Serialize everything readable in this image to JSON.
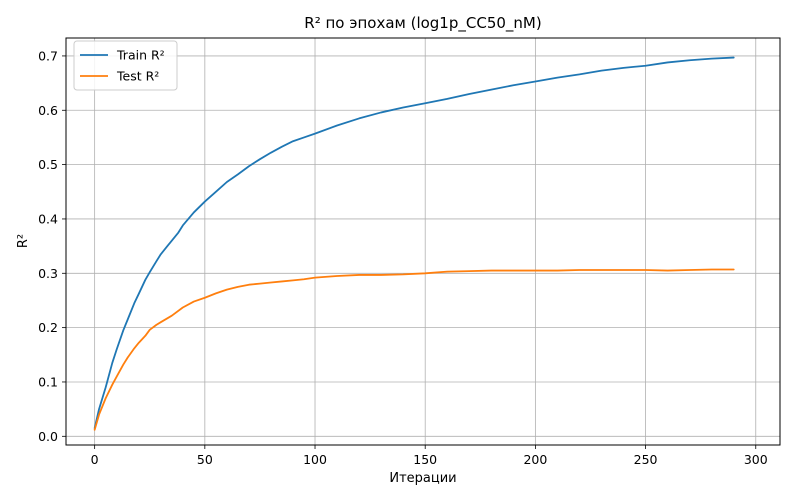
{
  "chart_data": {
    "type": "line",
    "title": "R² по эпохам (log1p_CC50_nM)",
    "xlabel": "Итерации",
    "ylabel": "R²",
    "xlim": [
      -13,
      311
    ],
    "ylim": [
      -0.016,
      0.733
    ],
    "xticks": [
      0,
      50,
      100,
      150,
      200,
      250,
      300
    ],
    "yticks": [
      0.0,
      0.1,
      0.2,
      0.3,
      0.4,
      0.5,
      0.6,
      0.7
    ],
    "xtick_labels": [
      "0",
      "50",
      "100",
      "150",
      "200",
      "250",
      "300"
    ],
    "ytick_labels": [
      "0.0",
      "0.1",
      "0.2",
      "0.3",
      "0.4",
      "0.5",
      "0.6",
      "0.7"
    ],
    "grid": true,
    "legend_position": "upper-left",
    "series": [
      {
        "name": "Train R²",
        "color": "#1f77b4",
        "x": [
          0,
          2,
          5,
          8,
          10,
          13,
          15,
          18,
          20,
          23,
          25,
          28,
          30,
          33,
          35,
          38,
          40,
          45,
          50,
          55,
          60,
          65,
          70,
          75,
          80,
          85,
          90,
          95,
          100,
          110,
          120,
          130,
          140,
          150,
          160,
          170,
          180,
          190,
          200,
          210,
          220,
          230,
          240,
          250,
          260,
          270,
          280,
          290
        ],
        "y": [
          0.015,
          0.05,
          0.09,
          0.135,
          0.16,
          0.195,
          0.215,
          0.245,
          0.262,
          0.288,
          0.302,
          0.322,
          0.335,
          0.35,
          0.36,
          0.375,
          0.388,
          0.412,
          0.432,
          0.45,
          0.468,
          0.482,
          0.497,
          0.51,
          0.522,
          0.533,
          0.543,
          0.55,
          0.557,
          0.572,
          0.585,
          0.596,
          0.605,
          0.613,
          0.621,
          0.63,
          0.638,
          0.646,
          0.653,
          0.66,
          0.666,
          0.673,
          0.678,
          0.682,
          0.688,
          0.692,
          0.695,
          0.697
        ]
      },
      {
        "name": "Test R²",
        "color": "#ff7f0e",
        "x": [
          0,
          2,
          5,
          8,
          10,
          13,
          15,
          18,
          20,
          23,
          25,
          28,
          30,
          35,
          40,
          45,
          50,
          55,
          60,
          65,
          70,
          75,
          80,
          85,
          90,
          95,
          100,
          110,
          120,
          130,
          140,
          150,
          160,
          170,
          180,
          190,
          200,
          210,
          220,
          230,
          240,
          250,
          260,
          270,
          280,
          290
        ],
        "y": [
          0.012,
          0.04,
          0.07,
          0.095,
          0.11,
          0.132,
          0.145,
          0.162,
          0.172,
          0.185,
          0.196,
          0.205,
          0.21,
          0.222,
          0.237,
          0.248,
          0.255,
          0.263,
          0.27,
          0.275,
          0.279,
          0.281,
          0.283,
          0.285,
          0.287,
          0.289,
          0.292,
          0.295,
          0.297,
          0.297,
          0.298,
          0.3,
          0.303,
          0.304,
          0.305,
          0.305,
          0.305,
          0.305,
          0.306,
          0.306,
          0.306,
          0.306,
          0.305,
          0.306,
          0.307,
          0.307
        ]
      }
    ]
  }
}
